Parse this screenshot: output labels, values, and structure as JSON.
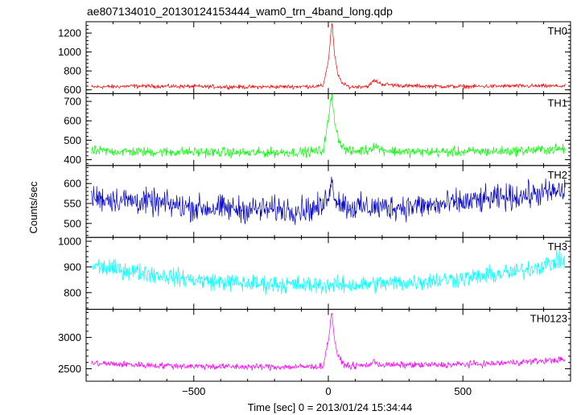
{
  "chart_data": {
    "type": "line",
    "title": "ae807134010_20130124153444_wam0_trn_4band_long.qdp",
    "xlabel": "Time [sec] 0 = 2013/01/24 15:34:44",
    "ylabel": "Counts/sec",
    "xlim": [
      -900,
      900
    ],
    "x_ticks": [
      -500,
      0,
      500
    ],
    "x_tick_labels": [
      "−500",
      "0",
      "500"
    ],
    "grid": false,
    "panels": [
      {
        "name": "TH0",
        "color": "#ff0000",
        "ylim": [
          560,
          1320
        ],
        "y_ticks": [
          600,
          800,
          1000,
          1200
        ],
        "series": {
          "base": 635,
          "noise": 18,
          "points": [
            [
              -880,
              630
            ],
            [
              -700,
              640
            ],
            [
              -500,
              635
            ],
            [
              -300,
              630
            ],
            [
              -100,
              635
            ],
            [
              -20,
              640
            ],
            [
              0,
              900
            ],
            [
              8,
              1150
            ],
            [
              14,
              1320
            ],
            [
              22,
              1000
            ],
            [
              35,
              760
            ],
            [
              55,
              660
            ],
            [
              80,
              630
            ],
            [
              150,
              640
            ],
            [
              170,
              700
            ],
            [
              200,
              660
            ],
            [
              300,
              640
            ],
            [
              500,
              635
            ],
            [
              700,
              640
            ],
            [
              860,
              640
            ]
          ]
        }
      },
      {
        "name": "TH1",
        "color": "#00ff00",
        "ylim": [
          370,
          740
        ],
        "y_ticks": [
          400,
          500,
          600,
          700
        ],
        "series": {
          "base": 440,
          "noise": 22,
          "points": [
            [
              -880,
              445
            ],
            [
              -700,
              440
            ],
            [
              -500,
              440
            ],
            [
              -300,
              435
            ],
            [
              -100,
              440
            ],
            [
              -20,
              445
            ],
            [
              0,
              600
            ],
            [
              8,
              700
            ],
            [
              14,
              720
            ],
            [
              22,
              620
            ],
            [
              35,
              520
            ],
            [
              55,
              460
            ],
            [
              80,
              440
            ],
            [
              150,
              450
            ],
            [
              170,
              475
            ],
            [
              200,
              450
            ],
            [
              300,
              440
            ],
            [
              500,
              440
            ],
            [
              700,
              445
            ],
            [
              860,
              455
            ]
          ]
        }
      },
      {
        "name": "TH2",
        "color": "#0000cc",
        "ylim": [
          465,
          645
        ],
        "y_ticks": [
          500,
          550,
          600
        ],
        "series": {
          "base": 545,
          "noise": 28,
          "points": [
            [
              -880,
              565
            ],
            [
              -700,
              555
            ],
            [
              -500,
              540
            ],
            [
              -300,
              535
            ],
            [
              -100,
              535
            ],
            [
              -20,
              540
            ],
            [
              0,
              580
            ],
            [
              14,
              600
            ],
            [
              30,
              560
            ],
            [
              80,
              540
            ],
            [
              200,
              540
            ],
            [
              400,
              545
            ],
            [
              600,
              560
            ],
            [
              860,
              580
            ]
          ]
        }
      },
      {
        "name": "TH3",
        "color": "#00ffff",
        "ylim": [
          735,
          1015
        ],
        "y_ticks": [
          800,
          900,
          1000
        ],
        "series": {
          "base": 860,
          "noise": 30,
          "points": [
            [
              -880,
              905
            ],
            [
              -700,
              880
            ],
            [
              -500,
              850
            ],
            [
              -300,
              835
            ],
            [
              -100,
              830
            ],
            [
              0,
              830
            ],
            [
              100,
              830
            ],
            [
              300,
              840
            ],
            [
              500,
              855
            ],
            [
              700,
              880
            ],
            [
              860,
              925
            ]
          ]
        }
      },
      {
        "name": "TH0123",
        "color": "#ff00ff",
        "ylim": [
          2300,
          3450
        ],
        "y_ticks": [
          2500,
          3000
        ],
        "series": {
          "base": 2560,
          "noise": 45,
          "points": [
            [
              -880,
              2590
            ],
            [
              -700,
              2560
            ],
            [
              -500,
              2540
            ],
            [
              -300,
              2530
            ],
            [
              -100,
              2530
            ],
            [
              -20,
              2540
            ],
            [
              0,
              2950
            ],
            [
              8,
              3250
            ],
            [
              14,
              3400
            ],
            [
              22,
              3000
            ],
            [
              35,
              2700
            ],
            [
              55,
              2580
            ],
            [
              80,
              2540
            ],
            [
              150,
              2560
            ],
            [
              170,
              2610
            ],
            [
              200,
              2560
            ],
            [
              400,
              2560
            ],
            [
              600,
              2580
            ],
            [
              860,
              2640
            ]
          ]
        }
      }
    ]
  }
}
